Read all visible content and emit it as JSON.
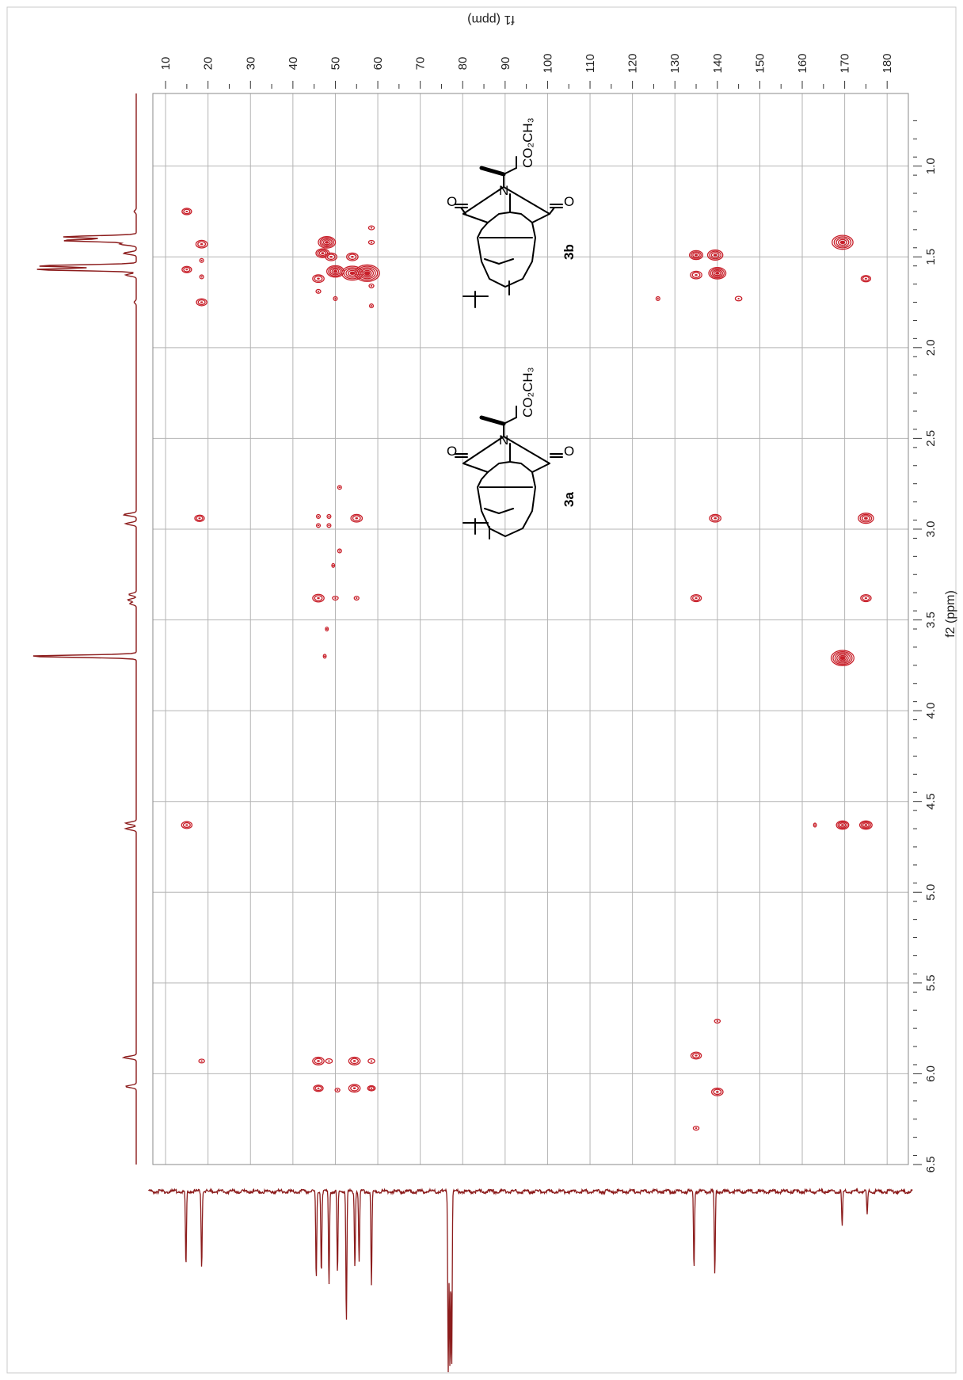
{
  "chart_data": {
    "type": "heatmap",
    "plot_kind": "2D HSQC/HMBC NMR contour spectrum",
    "x_axis": {
      "label": "f1 (ppm)",
      "range": [
        7,
        185
      ],
      "ticks": [
        10,
        20,
        30,
        40,
        50,
        60,
        70,
        80,
        90,
        100,
        110,
        120,
        130,
        140,
        150,
        160,
        170,
        180
      ]
    },
    "y_axis": {
      "label": "f2 (ppm)",
      "range": [
        0.6,
        6.5
      ],
      "ticks": [
        1.0,
        1.5,
        2.0,
        2.5,
        3.0,
        3.5,
        4.0,
        4.5,
        5.0,
        5.5,
        6.0,
        6.5
      ]
    },
    "grid": true,
    "contour_color": "#c8202a",
    "projection_color": "#8c1c1c",
    "cross_peaks": [
      {
        "c": 15,
        "h": 1.25,
        "s": 1
      },
      {
        "c": 18.5,
        "h": 1.43,
        "s": 1.2
      },
      {
        "c": 15,
        "h": 1.57,
        "s": 1
      },
      {
        "c": 18.5,
        "h": 1.52,
        "s": 0.4
      },
      {
        "c": 18.5,
        "h": 1.61,
        "s": 0.4
      },
      {
        "c": 18.5,
        "h": 1.75,
        "s": 1.1
      },
      {
        "c": 48,
        "h": 1.42,
        "s": 1.8
      },
      {
        "c": 47,
        "h": 1.48,
        "s": 1.4
      },
      {
        "c": 49,
        "h": 1.5,
        "s": 1.2
      },
      {
        "c": 50,
        "h": 1.58,
        "s": 1.8
      },
      {
        "c": 46,
        "h": 1.62,
        "s": 1.2
      },
      {
        "c": 54,
        "h": 1.5,
        "s": 1.2
      },
      {
        "c": 54,
        "h": 1.59,
        "s": 2.2
      },
      {
        "c": 57.5,
        "h": 1.59,
        "s": 2.6
      },
      {
        "c": 58.5,
        "h": 1.34,
        "s": 0.6
      },
      {
        "c": 58.5,
        "h": 1.42,
        "s": 0.6
      },
      {
        "c": 58.5,
        "h": 1.66,
        "s": 0.5
      },
      {
        "c": 58.5,
        "h": 1.77,
        "s": 0.4
      },
      {
        "c": 50,
        "h": 1.73,
        "s": 0.4
      },
      {
        "c": 46,
        "h": 1.69,
        "s": 0.5
      },
      {
        "c": 135,
        "h": 1.49,
        "s": 1.4
      },
      {
        "c": 139.5,
        "h": 1.49,
        "s": 1.6
      },
      {
        "c": 135,
        "h": 1.6,
        "s": 1.2
      },
      {
        "c": 140,
        "h": 1.59,
        "s": 1.8
      },
      {
        "c": 126,
        "h": 1.73,
        "s": 0.4
      },
      {
        "c": 145,
        "h": 1.73,
        "s": 0.7
      },
      {
        "c": 169.5,
        "h": 1.42,
        "s": 2.2
      },
      {
        "c": 175,
        "h": 1.62,
        "s": 1
      },
      {
        "c": 18,
        "h": 2.94,
        "s": 1
      },
      {
        "c": 51,
        "h": 2.77,
        "s": 0.4
      },
      {
        "c": 46,
        "h": 2.93,
        "s": 0.4
      },
      {
        "c": 48.5,
        "h": 2.93,
        "s": 0.4
      },
      {
        "c": 46,
        "h": 2.98,
        "s": 0.4
      },
      {
        "c": 48.5,
        "h": 2.98,
        "s": 0.4
      },
      {
        "c": 55,
        "h": 2.94,
        "s": 1.2
      },
      {
        "c": 139.5,
        "h": 2.94,
        "s": 1.2
      },
      {
        "c": 175,
        "h": 2.94,
        "s": 1.6
      },
      {
        "c": 51,
        "h": 3.12,
        "s": 0.4
      },
      {
        "c": 49.5,
        "h": 3.2,
        "s": 0.3
      },
      {
        "c": 46,
        "h": 3.38,
        "s": 1.2
      },
      {
        "c": 50,
        "h": 3.38,
        "s": 0.6
      },
      {
        "c": 55,
        "h": 3.38,
        "s": 0.5
      },
      {
        "c": 135,
        "h": 3.38,
        "s": 1.1
      },
      {
        "c": 175,
        "h": 3.38,
        "s": 1.1
      },
      {
        "c": 48,
        "h": 3.55,
        "s": 0.3
      },
      {
        "c": 47.5,
        "h": 3.7,
        "s": 0.3
      },
      {
        "c": 169.5,
        "h": 3.71,
        "s": 2.4
      },
      {
        "c": 15,
        "h": 4.63,
        "s": 1.1
      },
      {
        "c": 163,
        "h": 4.63,
        "s": 0.3
      },
      {
        "c": 169.5,
        "h": 4.63,
        "s": 1.3
      },
      {
        "c": 175,
        "h": 4.63,
        "s": 1.3
      },
      {
        "c": 140,
        "h": 5.71,
        "s": 0.6
      },
      {
        "c": 18.5,
        "h": 5.93,
        "s": 0.6
      },
      {
        "c": 46,
        "h": 5.93,
        "s": 1.2
      },
      {
        "c": 48.5,
        "h": 5.93,
        "s": 0.7
      },
      {
        "c": 54.5,
        "h": 5.93,
        "s": 1.2
      },
      {
        "c": 58.5,
        "h": 5.93,
        "s": 0.7
      },
      {
        "c": 135,
        "h": 5.9,
        "s": 1.1
      },
      {
        "c": 46,
        "h": 6.08,
        "s": 1
      },
      {
        "c": 50.5,
        "h": 6.09,
        "s": 0.5
      },
      {
        "c": 54.5,
        "h": 6.08,
        "s": 1.2
      },
      {
        "c": 58.5,
        "h": 6.08,
        "s": 0.8
      },
      {
        "c": 140,
        "h": 6.1,
        "s": 1.2
      },
      {
        "c": 135,
        "h": 6.3,
        "s": 0.6
      }
    ],
    "h_projection_peaks": [
      {
        "h": 1.25,
        "i": 0.02
      },
      {
        "h": 1.39,
        "i": 0.68
      },
      {
        "h": 1.41,
        "i": 0.7
      },
      {
        "h": 1.43,
        "i": 0.15
      },
      {
        "h": 1.48,
        "i": 0.12
      },
      {
        "h": 1.55,
        "i": 0.92
      },
      {
        "h": 1.57,
        "i": 0.94
      },
      {
        "h": 1.6,
        "i": 0.1
      },
      {
        "h": 1.75,
        "i": 0.02
      },
      {
        "h": 2.92,
        "i": 0.12
      },
      {
        "h": 2.97,
        "i": 0.1
      },
      {
        "h": 3.36,
        "i": 0.07
      },
      {
        "h": 3.39,
        "i": 0.08
      },
      {
        "h": 3.41,
        "i": 0.06
      },
      {
        "h": 3.7,
        "i": 1.0
      },
      {
        "h": 4.62,
        "i": 0.1
      },
      {
        "h": 4.65,
        "i": 0.1
      },
      {
        "h": 5.91,
        "i": 0.12
      },
      {
        "h": 6.07,
        "i": 0.1
      }
    ],
    "c_projection_peaks": [
      {
        "c": 14.8,
        "i": 0.42
      },
      {
        "c": 18.5,
        "i": 0.42
      },
      {
        "c": 45.5,
        "i": 0.5
      },
      {
        "c": 46.7,
        "i": 0.46
      },
      {
        "c": 48.5,
        "i": 0.52
      },
      {
        "c": 50.5,
        "i": 0.46
      },
      {
        "c": 52.6,
        "i": 0.72
      },
      {
        "c": 54.6,
        "i": 0.42
      },
      {
        "c": 55.6,
        "i": 0.4
      },
      {
        "c": 58.5,
        "i": 0.53
      },
      {
        "c": 76.6,
        "i": 1.0
      },
      {
        "c": 77.0,
        "i": 1.0
      },
      {
        "c": 77.4,
        "i": 1.0
      },
      {
        "c": 134.5,
        "i": 0.43
      },
      {
        "c": 139.4,
        "i": 0.47
      },
      {
        "c": 169.4,
        "i": 0.2
      },
      {
        "c": 175.3,
        "i": 0.13
      }
    ]
  },
  "structures": {
    "substituent_upper": "CO₂CH₃",
    "substituent_lower": "CO₂CH₃",
    "atom_n_upper": "N",
    "atom_n_lower": "N",
    "atom_o": "O",
    "label_upper": "3b",
    "label_lower": "3a"
  }
}
